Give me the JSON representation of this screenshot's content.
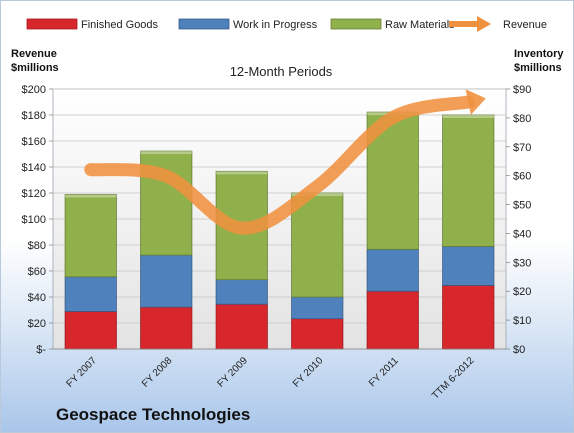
{
  "chart_data": {
    "type": "bar",
    "stacked": true,
    "title": "12-Month Periods",
    "company": "Geospace Technologies",
    "categories": [
      "FY 2007",
      "FY 2008",
      "FY 2009",
      "FY 2010",
      "FY 2011",
      "TTM 6-2012"
    ],
    "left_axis": {
      "label_line1": "Revenue",
      "label_line2": "$millions",
      "range": [
        0,
        200
      ],
      "ticks": [
        "$-",
        "$20",
        "$40",
        "$60",
        "$80",
        "$100",
        "$120",
        "$140",
        "$160",
        "$180",
        "$200"
      ]
    },
    "right_axis": {
      "label_line1": "Inventory",
      "label_line2": "$millions",
      "range": [
        0,
        90
      ],
      "ticks": [
        "$0",
        "$10",
        "$20",
        "$30",
        "$40",
        "$50",
        "$60",
        "$70",
        "$80",
        "$90"
      ]
    },
    "series": [
      {
        "name": "Finished Goods",
        "axis": "right",
        "type": "bar",
        "color": "#d7262c",
        "values": [
          13,
          14.5,
          15.5,
          10.5,
          20,
          22
        ]
      },
      {
        "name": "Work in Progress",
        "axis": "right",
        "type": "bar",
        "color": "#4f81bd",
        "values": [
          12,
          18,
          8.5,
          7.5,
          14.5,
          13.5
        ]
      },
      {
        "name": "Raw Materials",
        "axis": "right",
        "type": "bar",
        "color": "#8fb04a",
        "values": [
          28.5,
          36,
          37.5,
          36,
          47.5,
          45.5
        ]
      },
      {
        "name": "Revenue",
        "axis": "left",
        "type": "line",
        "color": "#f0913f",
        "values": [
          138,
          133,
          93,
          125,
          178,
          190
        ]
      }
    ],
    "grid": true,
    "legend_position": "top"
  }
}
